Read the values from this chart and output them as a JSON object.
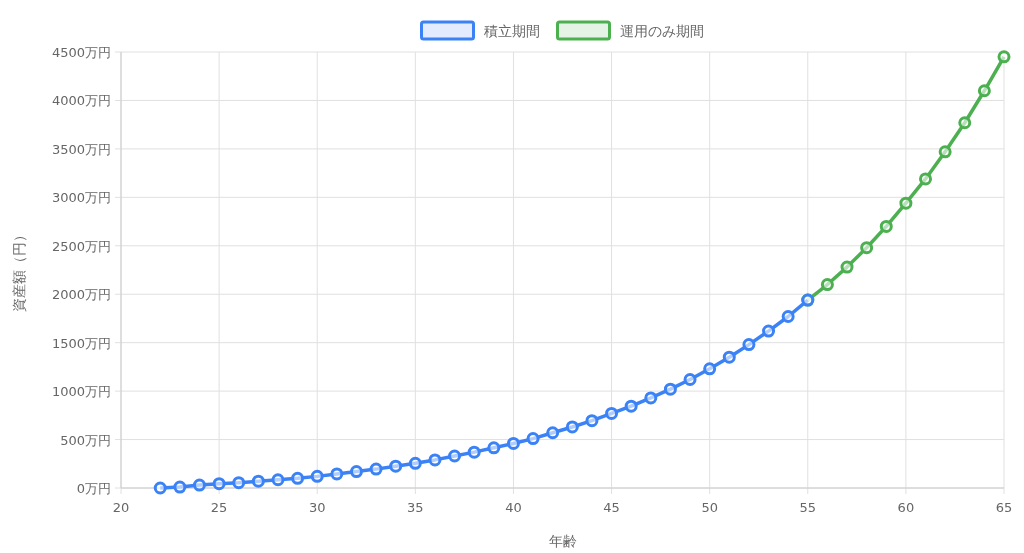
{
  "chart_data": {
    "type": "line",
    "xlabel": "年齢",
    "ylabel": "資産額（円）",
    "xlim": [
      20,
      65
    ],
    "xticks": [
      20,
      25,
      30,
      35,
      40,
      45,
      50,
      55,
      60,
      65
    ],
    "ylim": [
      0,
      4500
    ],
    "yticks": [
      {
        "value": 0,
        "label": "0万円"
      },
      {
        "value": 500,
        "label": "500万円"
      },
      {
        "value": 1000,
        "label": "1000万円"
      },
      {
        "value": 1500,
        "label": "1500万円"
      },
      {
        "value": 2000,
        "label": "2000万円"
      },
      {
        "value": 2500,
        "label": "2500万円"
      },
      {
        "value": 3000,
        "label": "3000万円"
      },
      {
        "value": 3500,
        "label": "3500万円"
      },
      {
        "value": 4000,
        "label": "4000万円"
      },
      {
        "value": 4500,
        "label": "4500万円"
      }
    ],
    "grid": true,
    "legend": "top",
    "marker": "circle",
    "line_style": "solid",
    "series": [
      {
        "name": "積立期間",
        "color": "#3b82f6",
        "x": [
          22,
          23,
          24,
          25,
          26,
          27,
          28,
          29,
          30,
          31,
          32,
          33,
          34,
          35,
          36,
          37,
          38,
          39,
          40,
          41,
          42,
          43,
          44,
          45,
          46,
          47,
          48,
          49,
          50,
          51,
          52,
          53,
          54,
          55
        ],
        "values": [
          0,
          10,
          30,
          45,
          55,
          70,
          85,
          100,
          120,
          145,
          170,
          195,
          225,
          255,
          290,
          330,
          370,
          415,
          460,
          510,
          570,
          630,
          695,
          770,
          845,
          930,
          1020,
          1120,
          1230,
          1350,
          1480,
          1620,
          1770,
          1940
        ]
      },
      {
        "name": "運用のみ期間",
        "color": "#4caf50",
        "x": [
          55,
          56,
          57,
          58,
          59,
          60,
          61,
          62,
          63,
          64,
          65
        ],
        "values": [
          1940,
          2100,
          2280,
          2480,
          2700,
          2940,
          3190,
          3470,
          3770,
          4100,
          4450
        ]
      }
    ]
  }
}
